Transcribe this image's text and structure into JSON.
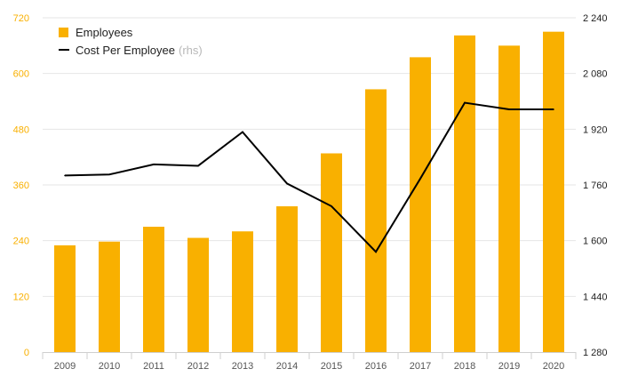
{
  "chart_data": {
    "type": "bar",
    "categories": [
      "2009",
      "2010",
      "2011",
      "2012",
      "2013",
      "2014",
      "2015",
      "2016",
      "2017",
      "2018",
      "2019",
      "2020"
    ],
    "series": [
      {
        "name": "Employees",
        "type": "bar",
        "axis": "left",
        "values": [
          230,
          238,
          270,
          246,
          260,
          314,
          428,
          566,
          635,
          682,
          660,
          690
        ]
      },
      {
        "name": "Cost Per Employee",
        "type": "line",
        "axis": "right",
        "values": [
          1787,
          1790,
          1819,
          1815,
          1912,
          1764,
          1699,
          1568,
          1778,
          1996,
          1977,
          1977
        ]
      }
    ],
    "left_axis": {
      "ylim": [
        0,
        720
      ],
      "ticks": [
        "0",
        "120",
        "240",
        "360",
        "480",
        "600",
        "720"
      ]
    },
    "right_axis": {
      "ylim": [
        1280,
        2240
      ],
      "ticks": [
        "1 280",
        "1 440",
        "1 600",
        "1 760",
        "1 920",
        "2 080",
        "2 240"
      ]
    },
    "legend": {
      "position": "top-left",
      "rhs_note": "(rhs)"
    },
    "grid": true,
    "colors": {
      "bar": "#F9B000",
      "line": "#000000",
      "left_ticks": "#F9B000",
      "right_ticks": "#222222",
      "grid": "#e6e6e6"
    }
  }
}
